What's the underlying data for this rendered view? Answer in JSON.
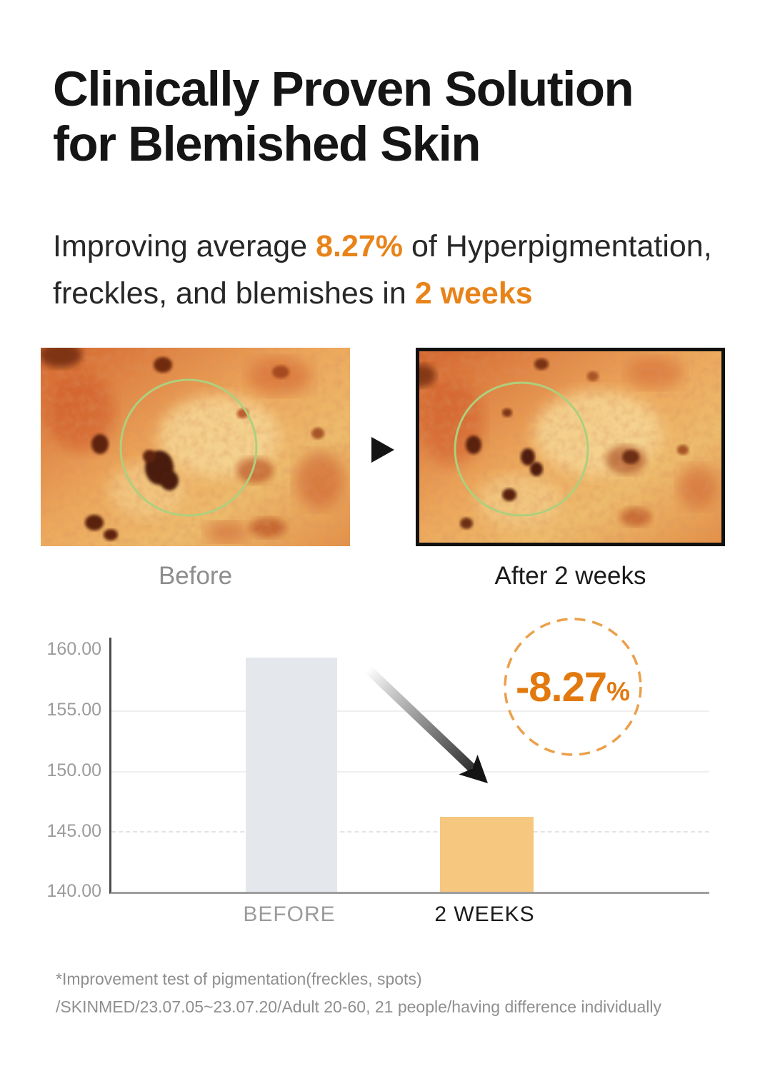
{
  "header": {
    "title_line1": "Clinically Proven Solution",
    "title_line2": "for Blemished Skin",
    "subtitle": {
      "pre": "Improving average ",
      "highlight1": "8.27%",
      "mid1": " of Hyperpigmentation,",
      "mid2": "freckles, and blemishes in ",
      "highlight2": "2 weeks"
    }
  },
  "figure": {
    "before_label": "Before",
    "after_label": "After 2 weeks"
  },
  "icons": {
    "before_after_arrow": "right-triangle",
    "trend_arrow": "diagonal-down-arrow",
    "badge_ring": "dashed-circle"
  },
  "chart_data": {
    "type": "bar",
    "categories": [
      "BEFORE",
      "2 WEEKS"
    ],
    "values": [
      159.35,
      146.17
    ],
    "bar_colors": [
      "#E4E7EB",
      "#F5C77F"
    ],
    "ylim": [
      140,
      160
    ],
    "yticks": [
      "160.00",
      "155.00",
      "150.00",
      "145.00",
      "140.00"
    ],
    "gridline_values": [
      155,
      150,
      145
    ],
    "grid": "horizontal",
    "legend": "none",
    "title": "",
    "xlabel": "",
    "ylabel": "",
    "annotation": {
      "value": "-8.27",
      "unit": "%"
    }
  },
  "colors": {
    "accent": "#E8831A",
    "badge_text": "#E2790E",
    "badge_ring": "#EBA04A",
    "bar_before": "#E4E7EB",
    "bar_after": "#F5C77F"
  },
  "footnote": {
    "line1": "*Improvement test of pigmentation(freckles, spots)",
    "line2": "/SKINMED/23.07.05~23.07.20/Adult 20-60, 21 people/having difference individually"
  }
}
